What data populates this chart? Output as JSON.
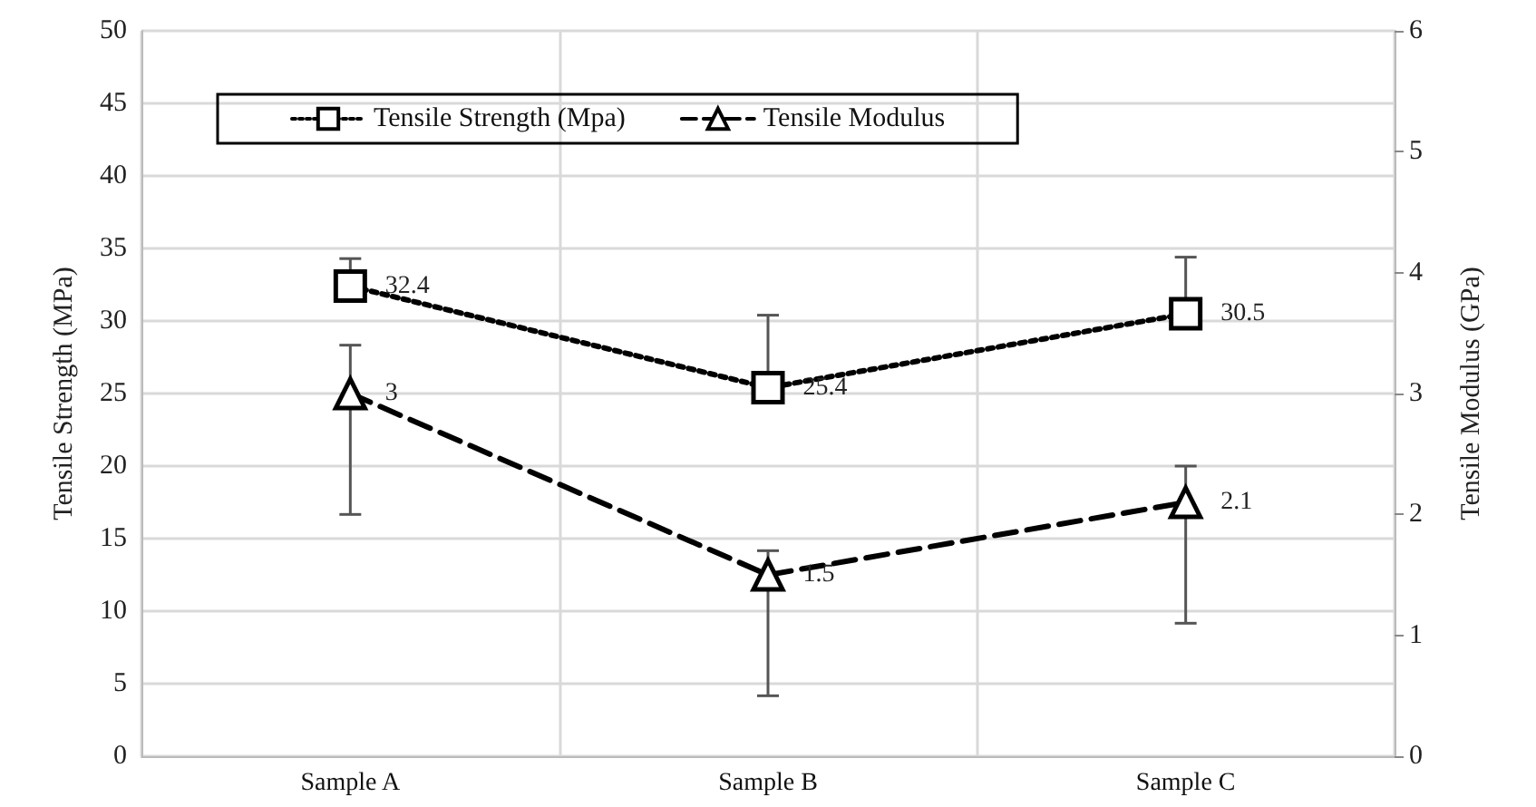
{
  "chart_data": {
    "type": "line",
    "ylabel": "Tensile Strength (MPa)",
    "y2label": "Tensile Modulus (GPa)",
    "categories": [
      "Sample A",
      "Sample B",
      "Sample C"
    ],
    "series": [
      {
        "name": "Tensile Strength (Mpa)",
        "color": "#000000",
        "values": [
          32.4,
          25.4,
          30.5
        ],
        "errors": [
          [
            31.9,
            34.3
          ],
          [
            24.9,
            30.4
          ],
          [
            30.0,
            34.4
          ]
        ],
        "marker": "square",
        "line_style": "dotted"
      },
      {
        "name": "Tensile Modulus",
        "color": "#000000",
        "values": [
          3,
          1.5,
          2.1
        ],
        "errors": [
          [
            2.0,
            3.4
          ],
          [
            0.5,
            1.7
          ],
          [
            1.1,
            2.4
          ]
        ],
        "marker": "triangle",
        "line_style": "dashed",
        "axis": "y2"
      }
    ],
    "ylim": [
      0,
      50
    ],
    "yticks": [
      0,
      5,
      10,
      15,
      20,
      25,
      30,
      35,
      40,
      45,
      50
    ],
    "y2lim": [
      0,
      6
    ],
    "y2ticks": [
      0,
      1,
      2,
      3,
      4,
      5,
      6
    ],
    "grid": true,
    "legend": "top left",
    "data_labels": true
  }
}
